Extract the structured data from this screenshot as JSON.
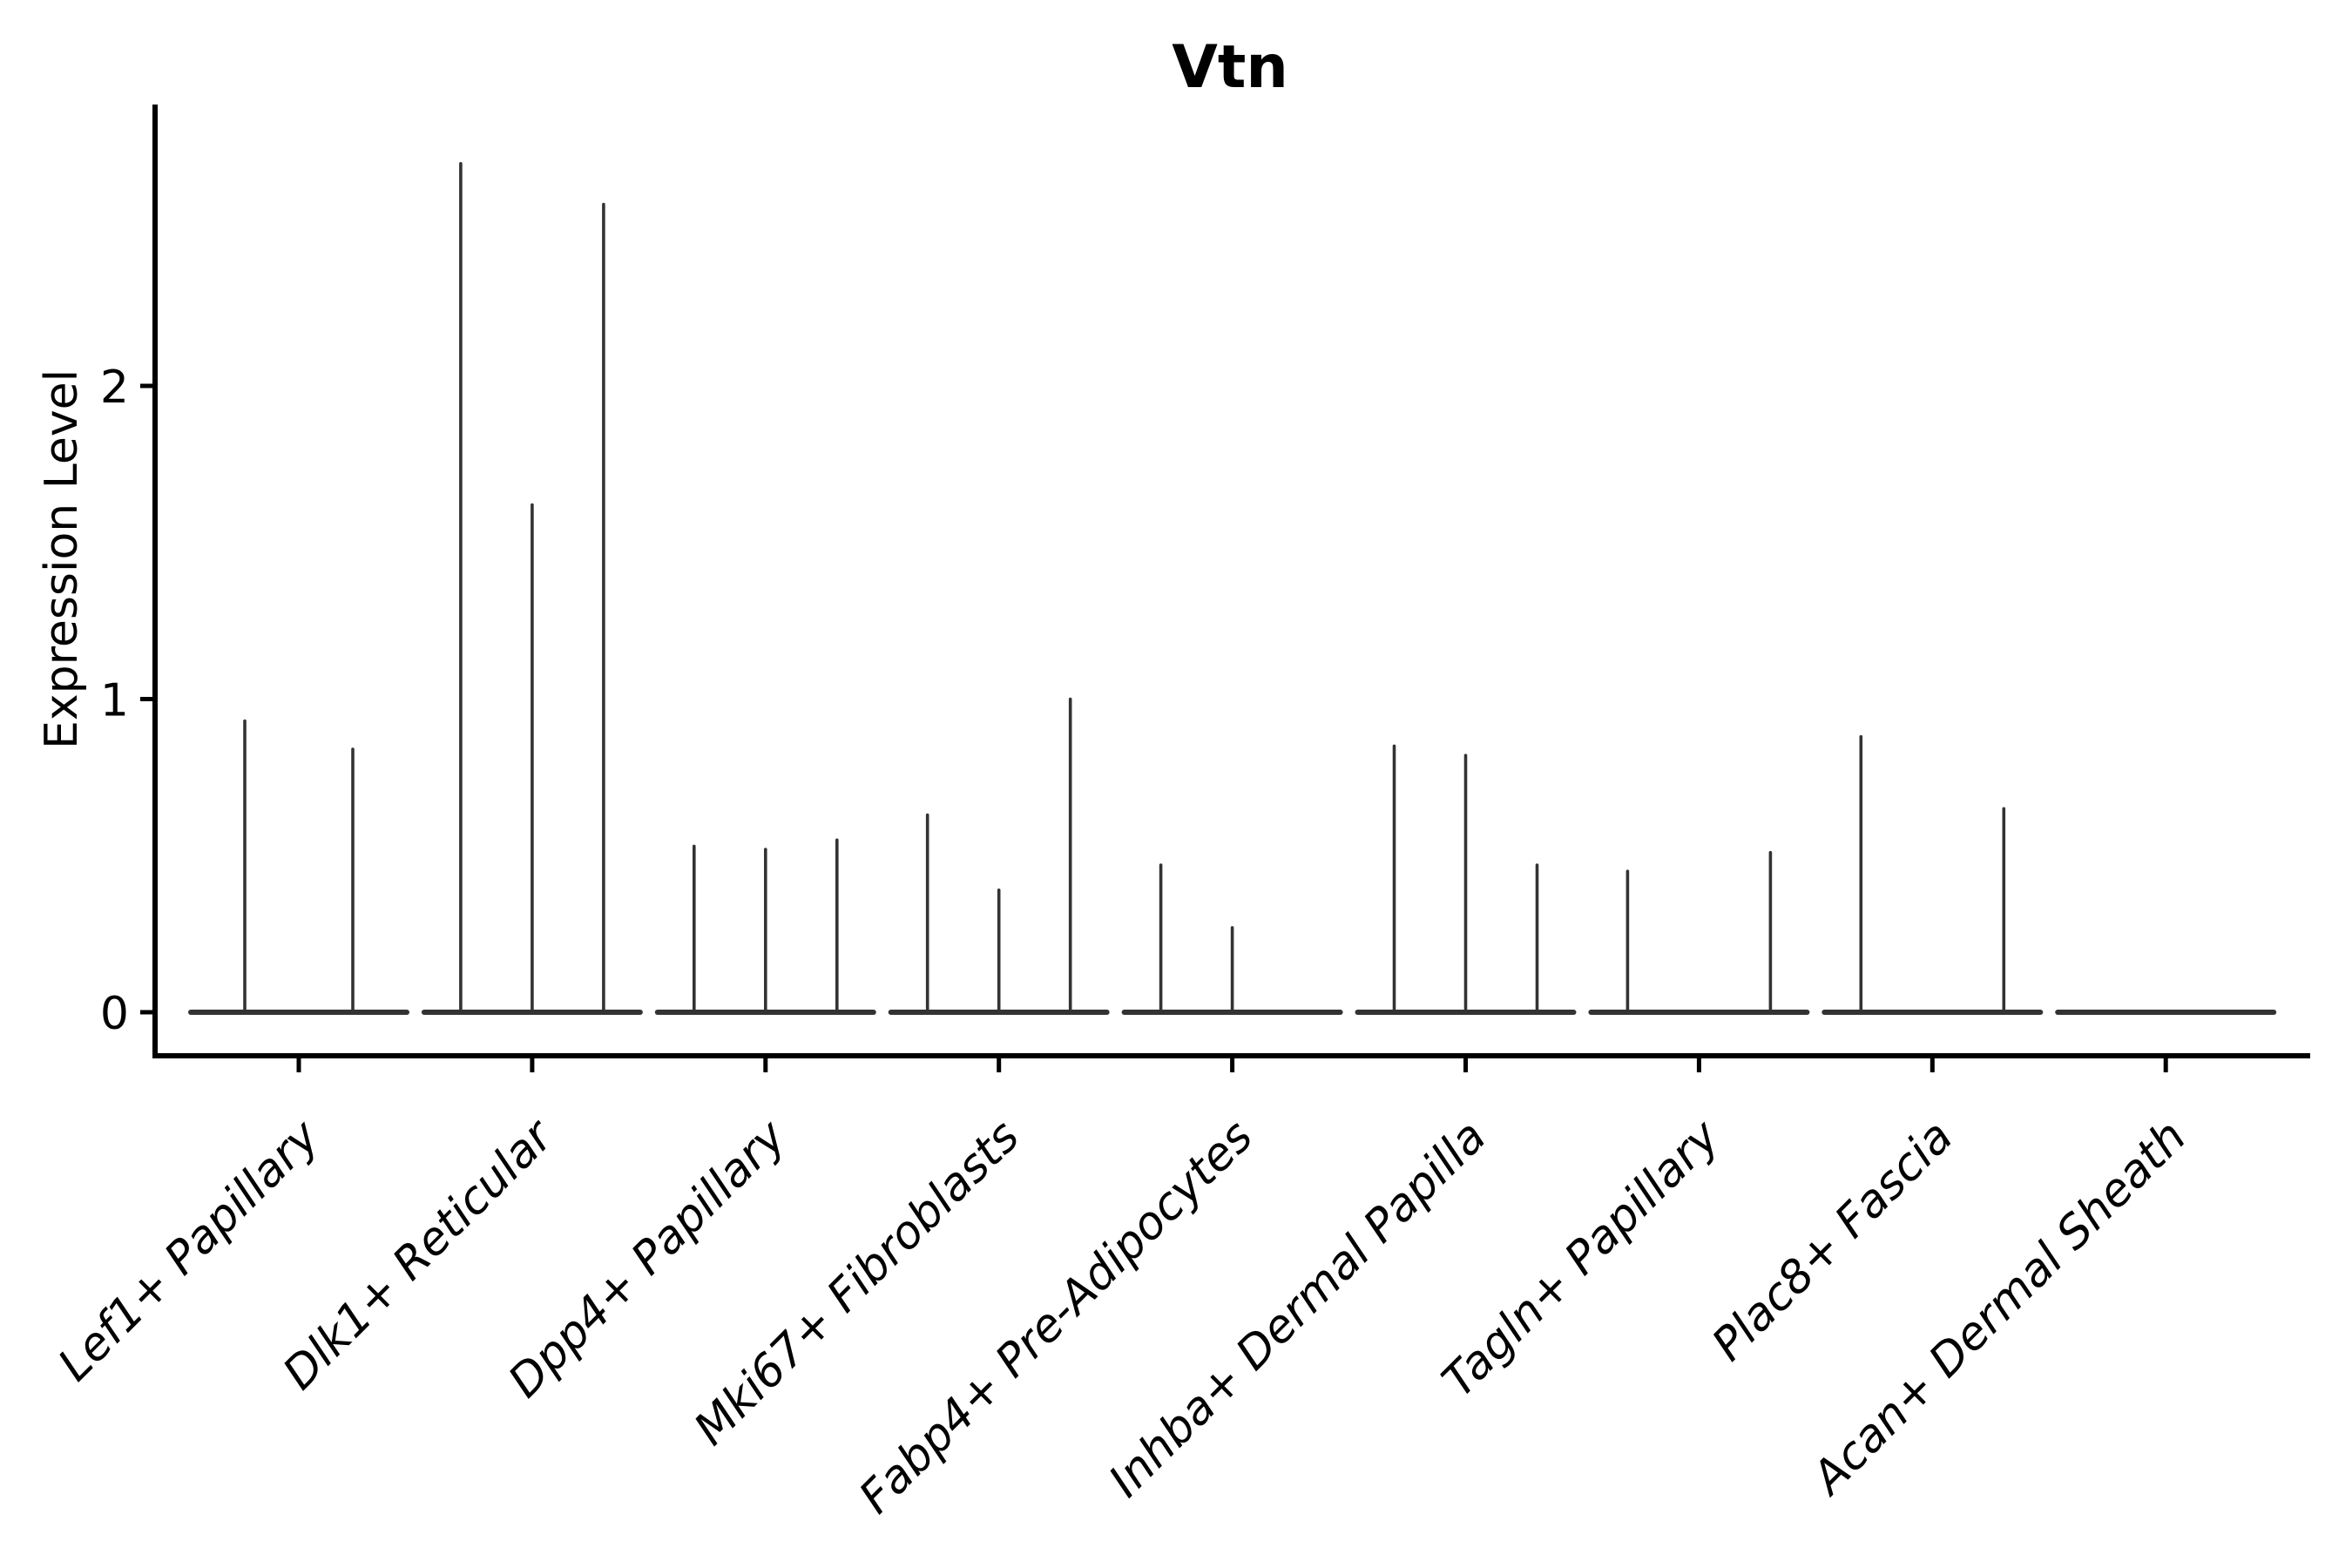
{
  "chart_data": {
    "type": "violin",
    "title": "Vtn",
    "ylabel": "Expression Level",
    "xlabel": "",
    "yticks": [
      0,
      1,
      2
    ],
    "ylim": [
      0,
      2.89
    ],
    "grid": false,
    "legend": "none",
    "categories": [
      "Lef1+ Papillary",
      "Dlk1+ Reticular",
      "Dpp4+ Papillary",
      "Mki67+ Fibroblasts",
      "Fabp4+ Pre-Adipocytes",
      "Inhba+ Dermal Papilla",
      "Tagln+ Papillary",
      "Plac8+ Fascia",
      "Acan+ Dermal Sheath"
    ],
    "series": [
      {
        "category": "Lef1+ Papillary",
        "spikes": [
          {
            "dx": -62,
            "value": 0.93
          },
          {
            "dx": 62,
            "value": 0.84
          }
        ]
      },
      {
        "category": "Dlk1+ Reticular",
        "spikes": [
          {
            "dx": -82,
            "value": 2.71
          },
          {
            "dx": 0,
            "value": 1.62
          },
          {
            "dx": 82,
            "value": 2.58
          }
        ]
      },
      {
        "category": "Dpp4+ Papillary",
        "spikes": [
          {
            "dx": -82,
            "value": 0.53
          },
          {
            "dx": 0,
            "value": 0.52
          },
          {
            "dx": 82,
            "value": 0.55
          }
        ]
      },
      {
        "category": "Mki67+ Fibroblasts",
        "spikes": [
          {
            "dx": -82,
            "value": 0.63
          },
          {
            "dx": 0,
            "value": 0.39
          },
          {
            "dx": 82,
            "value": 1.0
          }
        ]
      },
      {
        "category": "Fabp4+ Pre-Adipocytes",
        "spikes": [
          {
            "dx": -82,
            "value": 0.47
          },
          {
            "dx": 0,
            "value": 0.27
          }
        ]
      },
      {
        "category": "Inhba+ Dermal Papilla",
        "spikes": [
          {
            "dx": -82,
            "value": 0.85
          },
          {
            "dx": 0,
            "value": 0.82
          },
          {
            "dx": 82,
            "value": 0.47
          }
        ]
      },
      {
        "category": "Tagln+ Papillary",
        "spikes": [
          {
            "dx": -82,
            "value": 0.45
          },
          {
            "dx": 82,
            "value": 0.51
          }
        ]
      },
      {
        "category": "Plac8+ Fascia",
        "spikes": [
          {
            "dx": -82,
            "value": 0.88
          },
          {
            "dx": 82,
            "value": 0.65
          }
        ]
      },
      {
        "category": "Acan+ Dermal Sheath",
        "spikes": []
      }
    ],
    "colors": {
      "violin": "#333333",
      "axis": "#000000",
      "text": "#000000",
      "background": "#ffffff"
    }
  }
}
